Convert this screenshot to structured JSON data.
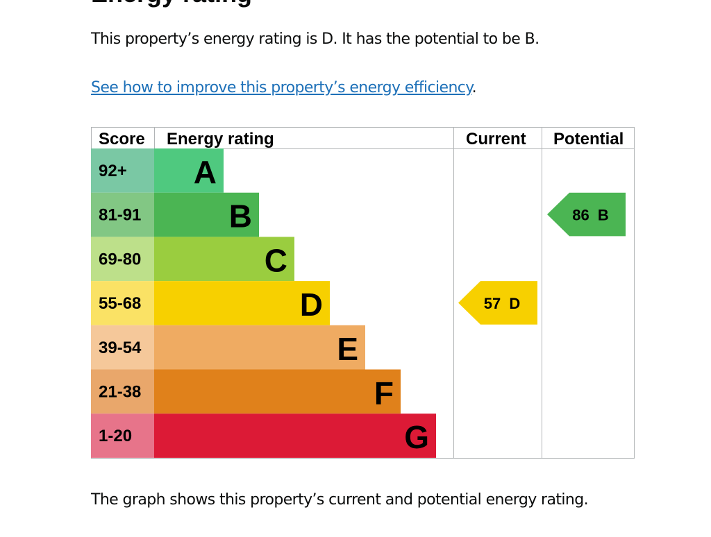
{
  "heading": "Energy rating",
  "intro": "This property’s energy rating is D. It has the potential to be B.",
  "link": "See how to improve this property’s energy efficiency",
  "link_suffix": ".",
  "footer": "The graph shows this property’s current and potential energy rating.",
  "chart_data": {
    "type": "table",
    "headers": {
      "score": "Score",
      "rating": "Energy rating",
      "current": "Current",
      "potential": "Potential"
    },
    "bands": [
      {
        "score": "92+",
        "letter": "A",
        "color": "#4fc97f",
        "score_color": "#7ac8a4"
      },
      {
        "score": "81-91",
        "letter": "B",
        "color": "#4bb553",
        "score_color": "#82c784"
      },
      {
        "score": "69-80",
        "letter": "C",
        "color": "#9acd3f",
        "score_color": "#bde08a"
      },
      {
        "score": "55-68",
        "letter": "D",
        "color": "#f7d000",
        "score_color": "#fae265"
      },
      {
        "score": "39-54",
        "letter": "E",
        "color": "#efab62",
        "score_color": "#f5c89a"
      },
      {
        "score": "21-38",
        "letter": "F",
        "color": "#e0811b",
        "score_color": "#e9a76b"
      },
      {
        "score": "1-20",
        "letter": "G",
        "color": "#dc1a36",
        "score_color": "#e7748a"
      }
    ],
    "current": {
      "score": 57,
      "letter": "D",
      "label": "57  D"
    },
    "potential": {
      "score": 86,
      "letter": "B",
      "label": "86  B"
    }
  }
}
